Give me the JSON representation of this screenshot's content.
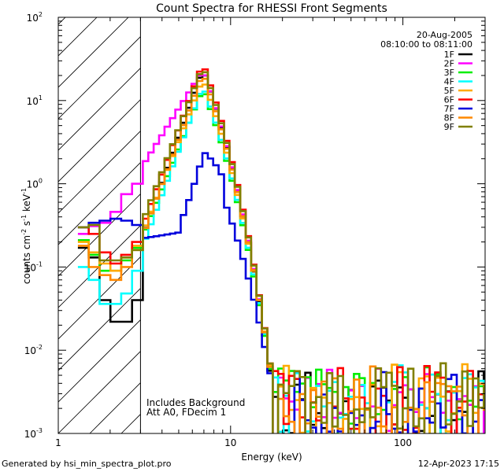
{
  "chart_data": {
    "type": "line",
    "title": "Count Spectra for RHESSI Front Segments",
    "xlabel": "Energy (keV)",
    "ylabel_main": "counts cm",
    "ylabel_exp1": "-2",
    "ylabel_mid": " s",
    "ylabel_exp2": "-1",
    "ylabel_end": " keV",
    "ylabel_exp3": "-1",
    "xscale": "log",
    "yscale": "log",
    "xlim": [
      1,
      300
    ],
    "ylim": [
      0.001,
      100
    ],
    "x_ticks": [
      {
        "value": 1,
        "label": "1"
      },
      {
        "value": 10,
        "label": "10"
      },
      {
        "value": 100,
        "label": "100"
      }
    ],
    "y_ticks": [
      {
        "value": 0.001,
        "base": "10",
        "exp": "-3"
      },
      {
        "value": 0.01,
        "base": "10",
        "exp": "-2"
      },
      {
        "value": 0.1,
        "base": "10",
        "exp": "-1"
      },
      {
        "value": 1,
        "base": "10",
        "exp": "0"
      },
      {
        "value": 10,
        "base": "10",
        "exp": "1"
      },
      {
        "value": 100,
        "base": "10",
        "exp": "2"
      }
    ],
    "hatched_region": {
      "x_from": 1,
      "x_to": 3
    },
    "date": "20-Aug-2005",
    "time_range": "08:10:00 to 08:11:00",
    "annotation_lines": [
      "Includes Background",
      "Att A0, FDecim 1"
    ],
    "series": [
      {
        "name": "1F",
        "color": "#000000",
        "low": [
          0.17,
          0.13,
          0.04,
          0.022,
          0.022,
          0.04,
          0.09,
          0.2
        ],
        "peak": 22,
        "scale_tail": 0.9,
        "seed": 11
      },
      {
        "name": "2F",
        "color": "#ff00ff",
        "low": [
          0.25,
          0.31,
          0.34,
          0.46,
          0.75,
          1.0,
          1.5
        ],
        "peak": 22,
        "scale_tail": 1.0,
        "seed": 23
      },
      {
        "name": "3F",
        "color": "#00ee00",
        "low": [
          0.21,
          0.14,
          0.09,
          0.09,
          0.12,
          0.17,
          0.19,
          0.2
        ],
        "peak": 13,
        "scale_tail": 0.95,
        "seed": 37
      },
      {
        "name": "4F",
        "color": "#00ffff",
        "low": [
          0.1,
          0.07,
          0.036,
          0.036,
          0.048,
          0.09,
          0.11,
          0.15
        ],
        "peak": 14,
        "scale_tail": 1.0,
        "seed": 41
      },
      {
        "name": "5F",
        "color": "#ffaa00",
        "low": [
          0.2,
          0.15,
          0.11,
          0.09,
          0.13,
          0.18,
          0.2,
          0.22
        ],
        "peak": 17,
        "scale_tail": 1.05,
        "seed": 53
      },
      {
        "name": "6F",
        "color": "#ff0000",
        "low": [
          0.3,
          0.25,
          0.15,
          0.11,
          0.14,
          0.2,
          0.26
        ],
        "peak": 26,
        "scale_tail": 1.1,
        "seed": 67
      },
      {
        "name": "7F",
        "color": "#0000dd",
        "low": [
          0.3,
          0.34,
          0.36,
          0.38,
          0.36,
          0.32,
          0.24
        ],
        "peak": 2.4,
        "scale_tail": 0.85,
        "seed": 71,
        "flat": true
      },
      {
        "name": "8F",
        "color": "#ff8800",
        "low": [
          0.18,
          0.1,
          0.08,
          0.07,
          0.1,
          0.16,
          0.2
        ],
        "peak": 20,
        "scale_tail": 1.0,
        "seed": 83
      },
      {
        "name": "9F",
        "color": "#808000",
        "low": [
          0.3,
          0.32,
          0.12,
          0.12,
          0.13,
          0.16,
          0.2,
          0.3
        ],
        "peak": 24,
        "scale_tail": 1.1,
        "seed": 97
      }
    ]
  },
  "footer": {
    "left": "Generated by hsi_min_spectra_plot.pro",
    "right": "12-Apr-2023 17:15"
  }
}
